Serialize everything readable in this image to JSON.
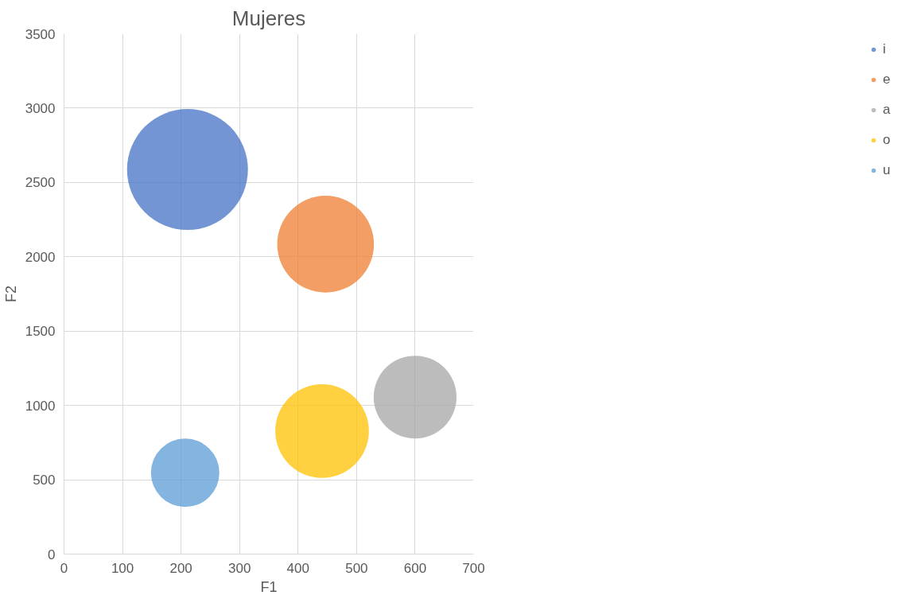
{
  "chart_data": {
    "type": "bubble",
    "title": "Mujeres",
    "xlabel": "F1",
    "ylabel": "F2",
    "xlim": [
      0,
      700
    ],
    "xticks": [
      0,
      100,
      200,
      300,
      400,
      500,
      600,
      700
    ],
    "ylim": [
      0,
      3500
    ],
    "yticks": [
      0,
      500,
      1000,
      1500,
      2000,
      2500,
      3000,
      3500
    ],
    "grid": true,
    "legend": "right",
    "series": [
      {
        "name": "i",
        "color": "#4472c4",
        "x": [
          211
        ],
        "values": [
          2587
        ],
        "sizes": [
          1
        ]
      },
      {
        "name": "e",
        "color": "#ed7d31",
        "x": [
          447
        ],
        "values": [
          2085
        ],
        "sizes": [
          0.64
        ]
      },
      {
        "name": "a",
        "color": "#a5a5a5",
        "x": [
          600
        ],
        "values": [
          1056
        ],
        "sizes": [
          0.47
        ]
      },
      {
        "name": "o",
        "color": "#ffc000",
        "x": [
          441
        ],
        "values": [
          828
        ],
        "sizes": [
          0.6
        ]
      },
      {
        "name": "u",
        "color": "#5b9bd5",
        "x": [
          207
        ],
        "values": [
          547
        ],
        "sizes": [
          0.32
        ]
      }
    ]
  }
}
